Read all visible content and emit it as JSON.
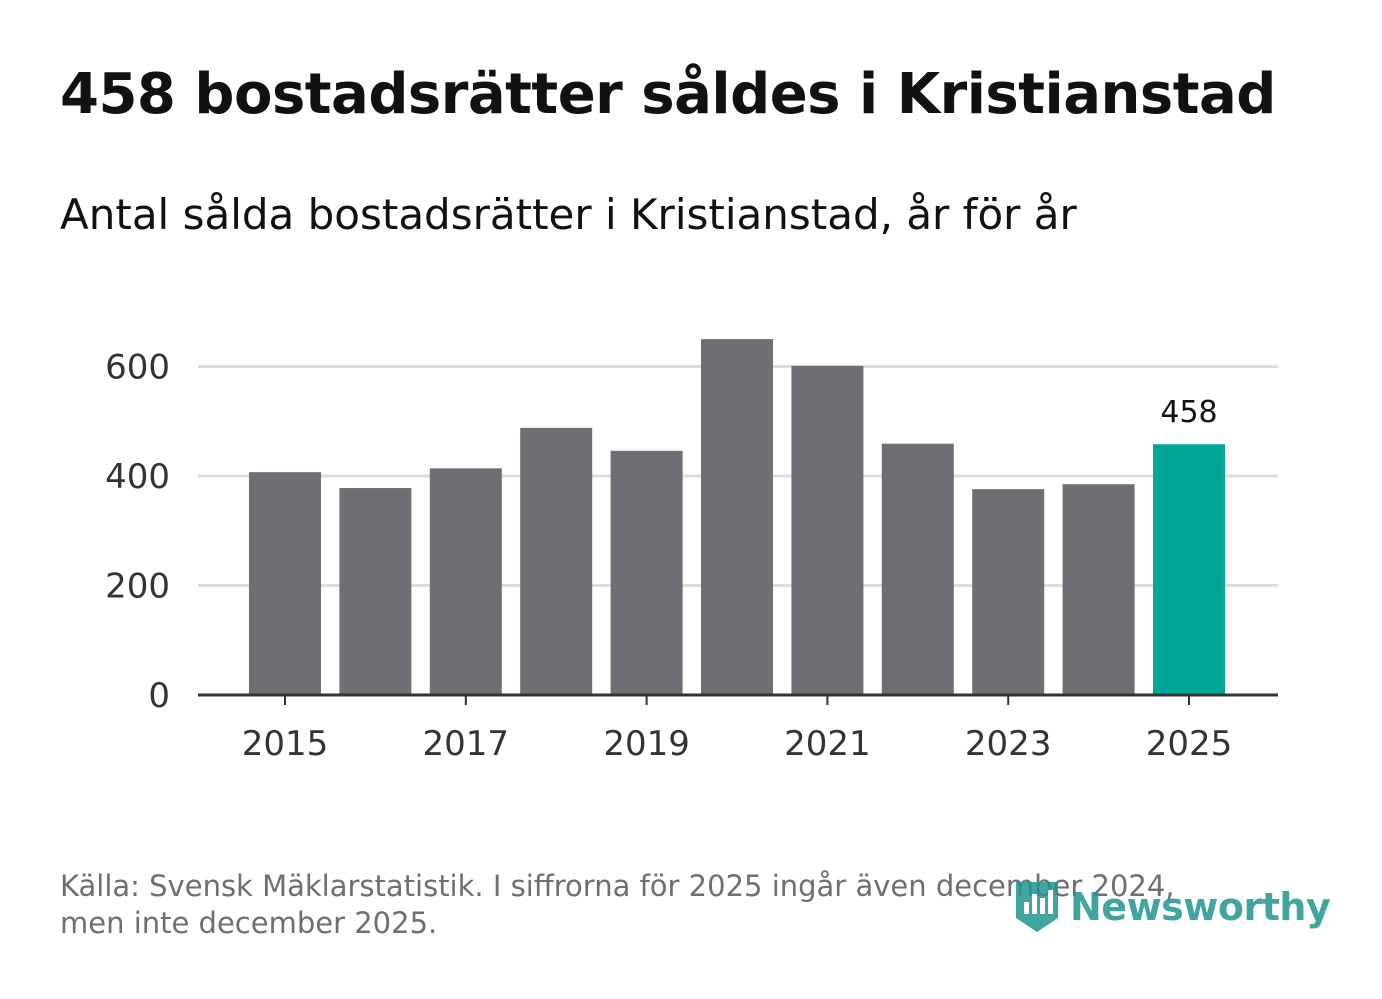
{
  "header": {
    "title": "458 bostadsrätter såldes i Kristianstad",
    "subtitle": "Antal sålda bostadsrätter i Kristianstad, år för år"
  },
  "footer": {
    "source_line1": "Källa: Svensk Mäklarstatistik. I siffrorna för 2025 ingår även december 2024,",
    "source_line2": "men inte december 2025.",
    "logo_text": "Newsworthy"
  },
  "colors": {
    "bar": "#6f6e74",
    "highlight": "#00a59a",
    "grid": "#dddddd",
    "axis": "#333333",
    "logo": "#1f9690"
  },
  "chart_data": {
    "type": "bar",
    "title": "458 bostadsrätter såldes i Kristianstad",
    "subtitle": "Antal sålda bostadsrätter i Kristianstad, år för år",
    "xlabel": "",
    "ylabel": "",
    "categories": [
      "2015",
      "2016",
      "2017",
      "2018",
      "2019",
      "2020",
      "2021",
      "2022",
      "2023",
      "2024",
      "2025"
    ],
    "values": [
      407,
      378,
      414,
      488,
      446,
      650,
      601,
      459,
      376,
      385,
      458
    ],
    "highlight_index": 10,
    "data_labels": [
      {
        "category": "2025",
        "text": "458"
      }
    ],
    "x_tick_labels": [
      "2015",
      "2017",
      "2019",
      "2021",
      "2023",
      "2025"
    ],
    "y_ticks": [
      0,
      200,
      400,
      600
    ],
    "ylim": [
      0,
      650
    ],
    "grid": true,
    "legend": "none"
  }
}
